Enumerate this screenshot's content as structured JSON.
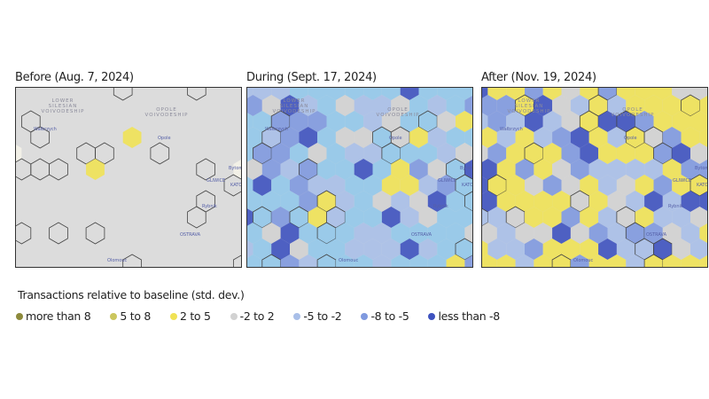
{
  "panels": [
    {
      "title": "Before (Aug. 7, 2024)",
      "mix": "before"
    },
    {
      "title": "During (Sept. 17, 2024)",
      "mix": "during"
    },
    {
      "title": "After (Nov. 19, 2024)",
      "mix": "after"
    }
  ],
  "map_labels": {
    "region1": "LOWER SILESIAN VOIVODESHIP",
    "region2": "OPOLE VOIVODESHIP",
    "walbrzych": "Wałbrzych",
    "opole": "Opole",
    "gliwice": "GLIWICE",
    "katowice": "KATO",
    "bytom": "Bytom",
    "rybnik": "Rybnik",
    "ostrava": "OSTRAVA",
    "olomouc": "Olomouc"
  },
  "legend": {
    "title": "Transactions relative to baseline (std. dev.)",
    "items": [
      {
        "label": "more than 8",
        "color": "#8d8a3c"
      },
      {
        "label": "5 to 8",
        "color": "#cbc65e"
      },
      {
        "label": "2 to 5",
        "color": "#f0e255"
      },
      {
        "label": "-2 to 2",
        "color": "#d2d2d2"
      },
      {
        "label": "-5 to -2",
        "color": "#a9bfe8"
      },
      {
        "label": "-8 to -5",
        "color": "#7f99df"
      },
      {
        "label": "less than -8",
        "color": "#3e52bf"
      }
    ]
  }
}
